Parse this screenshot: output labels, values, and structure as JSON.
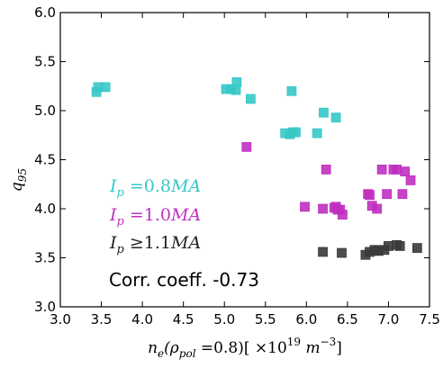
{
  "chart_data": {
    "type": "scatter",
    "xlabel": "n_e (ρ_pol = 0.8) [×10^19 m^-3]",
    "ylabel": "q_95",
    "xlim": [
      3.0,
      7.5
    ],
    "ylim": [
      3.0,
      6.0
    ],
    "x_ticks": [
      "3.0",
      "3.5",
      "4.0",
      "4.5",
      "5.0",
      "5.5",
      "6.0",
      "6.5",
      "7.0",
      "7.5"
    ],
    "y_ticks": [
      "3.0",
      "3.5",
      "4.0",
      "4.5",
      "5.0",
      "5.5",
      "6.0"
    ],
    "grid": false,
    "annotation": "Corr. coeff. -0.73",
    "series": [
      {
        "name": "I_p = 0.8MA",
        "color": "#37c8c8",
        "points": [
          [
            3.44,
            5.19
          ],
          [
            3.46,
            5.24
          ],
          [
            3.55,
            5.24
          ],
          [
            5.02,
            5.22
          ],
          [
            5.08,
            5.22
          ],
          [
            5.14,
            5.21
          ],
          [
            5.15,
            5.29
          ],
          [
            5.32,
            5.12
          ],
          [
            5.74,
            4.77
          ],
          [
            5.8,
            4.76
          ],
          [
            5.84,
            4.78
          ],
          [
            5.87,
            4.78
          ],
          [
            5.82,
            5.2
          ],
          [
            6.13,
            4.77
          ],
          [
            6.21,
            4.98
          ],
          [
            6.36,
            4.93
          ]
        ]
      },
      {
        "name": "I_p = 1.0MA",
        "color": "#c030c0",
        "points": [
          [
            5.27,
            4.63
          ],
          [
            6.24,
            4.4
          ],
          [
            5.98,
            4.02
          ],
          [
            6.2,
            4.0
          ],
          [
            6.34,
            4.01
          ],
          [
            6.38,
            3.99
          ],
          [
            6.36,
            4.02
          ],
          [
            6.41,
            3.99
          ],
          [
            6.44,
            3.94
          ],
          [
            6.75,
            4.15
          ],
          [
            6.77,
            4.14
          ],
          [
            6.8,
            4.03
          ],
          [
            6.86,
            4.0
          ],
          [
            6.92,
            4.4
          ],
          [
            6.98,
            4.15
          ],
          [
            7.06,
            4.4
          ],
          [
            7.1,
            4.4
          ],
          [
            7.17,
            4.15
          ],
          [
            7.2,
            4.38
          ],
          [
            7.27,
            4.29
          ]
        ]
      },
      {
        "name": "I_p ≥ 1.1MA",
        "color": "#3a3a3a",
        "points": [
          [
            6.2,
            3.56
          ],
          [
            6.43,
            3.55
          ],
          [
            6.72,
            3.53
          ],
          [
            6.77,
            3.56
          ],
          [
            6.83,
            3.58
          ],
          [
            6.88,
            3.57
          ],
          [
            6.95,
            3.58
          ],
          [
            7.0,
            3.62
          ],
          [
            7.1,
            3.63
          ],
          [
            7.14,
            3.62
          ],
          [
            7.35,
            3.6
          ]
        ]
      }
    ],
    "legend": [
      {
        "label": "I_p = 0.8MA",
        "color": "#37c8c8"
      },
      {
        "label": "I_p = 1.0MA",
        "color": "#c030c0"
      },
      {
        "label": "I_p ≥ 1.1MA",
        "color": "#3a3a3a"
      }
    ]
  }
}
